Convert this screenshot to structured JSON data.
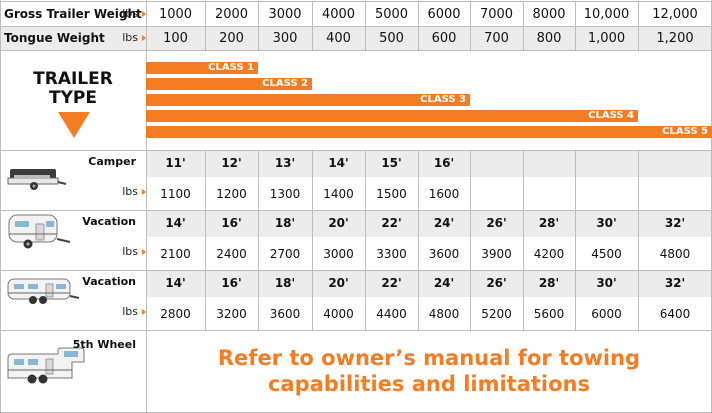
{
  "header": {
    "gross_label": "Gross Trailer Weight",
    "gross_unit": "lbs",
    "gross_values": [
      "1000",
      "2000",
      "3000",
      "4000",
      "5000",
      "6000",
      "7000",
      "8000",
      "10,000",
      "12,000"
    ],
    "tongue_label": "Tongue Weight",
    "tongue_unit": "lbs",
    "tongue_values": [
      "100",
      "200",
      "300",
      "400",
      "500",
      "600",
      "700",
      "800",
      "1,000",
      "1,200"
    ]
  },
  "trailer_type": {
    "line1": "TRAILER",
    "line2": "TYPE"
  },
  "classes": [
    {
      "label": "CLASS 1",
      "max_columns": 2
    },
    {
      "label": "CLASS 2",
      "max_columns": 3
    },
    {
      "label": "CLASS 3",
      "max_columns": 6
    },
    {
      "label": "CLASS 4",
      "max_columns": 9
    },
    {
      "label": "CLASS 5",
      "max_columns": 10
    }
  ],
  "trailers": [
    {
      "name": "Camper",
      "unit": "lbs",
      "lengths": [
        "11'",
        "12'",
        "13'",
        "14'",
        "15'",
        "16'",
        "",
        "",
        "",
        ""
      ],
      "weights": [
        "1100",
        "1200",
        "1300",
        "1400",
        "1500",
        "1600",
        "",
        "",
        "",
        ""
      ]
    },
    {
      "name": "Vacation",
      "unit": "lbs",
      "lengths": [
        "14'",
        "16'",
        "18'",
        "20'",
        "22'",
        "24'",
        "26'",
        "28'",
        "30'",
        "32'"
      ],
      "weights": [
        "2100",
        "2400",
        "2700",
        "3000",
        "3300",
        "3600",
        "3900",
        "4200",
        "4500",
        "4800"
      ]
    },
    {
      "name": "Vacation",
      "unit": "lbs",
      "lengths": [
        "14'",
        "16'",
        "18'",
        "20'",
        "22'",
        "24'",
        "26'",
        "28'",
        "30'",
        "32'"
      ],
      "weights": [
        "2800",
        "3200",
        "3600",
        "4000",
        "4400",
        "4800",
        "5200",
        "5600",
        "6000",
        "6400"
      ]
    }
  ],
  "fifth_wheel": {
    "name": "5th Wheel",
    "note_line1": "Refer to owner’s manual for towing",
    "note_line2": "capabilities and limitations"
  },
  "colors": {
    "accent": "#f47c22",
    "grid": "#bdbdbd",
    "shade": "#ececec"
  }
}
